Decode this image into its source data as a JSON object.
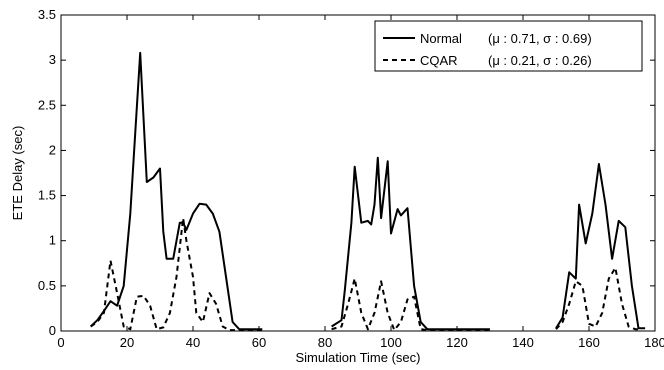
{
  "chart_data": {
    "type": "line",
    "title": "",
    "xlabel": "Simulation Time (sec)",
    "ylabel": "ETE Delay (sec)",
    "xlim": [
      0,
      180
    ],
    "ylim": [
      0,
      3.5
    ],
    "xticks": [
      0,
      20,
      40,
      60,
      80,
      100,
      120,
      140,
      160,
      180
    ],
    "yticks": [
      0,
      0.5,
      1,
      1.5,
      2,
      2.5,
      3,
      3.5
    ],
    "xtick_labels": [
      "0",
      "20",
      "40",
      "60",
      "80",
      "100",
      "120",
      "140",
      "160",
      "180"
    ],
    "ytick_labels": [
      "0",
      "0.5",
      "1",
      "1.5",
      "2",
      "2.5",
      "3",
      "3.5"
    ],
    "grid": false,
    "legend_position": "top-right",
    "series": [
      {
        "name": "Normal",
        "stats": "(μ : 0.71, σ : 0.69)",
        "style": "solid",
        "color": "#000000",
        "segments": [
          [
            [
              9,
              0.05
            ],
            [
              11,
              0.12
            ],
            [
              13,
              0.22
            ],
            [
              15,
              0.33
            ],
            [
              17,
              0.28
            ],
            [
              19,
              0.5
            ],
            [
              21,
              1.3
            ],
            [
              22,
              1.9
            ],
            [
              24,
              3.08
            ],
            [
              26,
              1.65
            ],
            [
              28,
              1.7
            ],
            [
              30,
              1.8
            ],
            [
              31,
              1.1
            ],
            [
              32,
              0.8
            ],
            [
              34,
              0.8
            ],
            [
              36,
              1.2
            ],
            [
              37,
              1.2
            ],
            [
              38,
              1.12
            ],
            [
              40,
              1.3
            ],
            [
              42,
              1.41
            ],
            [
              44,
              1.4
            ],
            [
              46,
              1.3
            ],
            [
              48,
              1.1
            ],
            [
              50,
              0.6
            ],
            [
              52,
              0.1
            ],
            [
              54,
              0.02
            ],
            [
              58,
              0.02
            ],
            [
              61,
              0.02
            ]
          ],
          [
            [
              82,
              0.05
            ],
            [
              85,
              0.12
            ],
            [
              86,
              0.45
            ],
            [
              88,
              1.2
            ],
            [
              89,
              1.82
            ],
            [
              91,
              1.2
            ],
            [
              93,
              1.22
            ],
            [
              94,
              1.18
            ],
            [
              95,
              1.4
            ],
            [
              96,
              1.92
            ],
            [
              97,
              1.25
            ],
            [
              99,
              1.88
            ],
            [
              100,
              1.08
            ],
            [
              102,
              1.35
            ],
            [
              103,
              1.28
            ],
            [
              105,
              1.36
            ],
            [
              107,
              0.5
            ],
            [
              109,
              0.1
            ],
            [
              111,
              0.02
            ],
            [
              114,
              0.02
            ],
            [
              130,
              0.02
            ]
          ],
          [
            [
              150,
              0.03
            ],
            [
              152,
              0.15
            ],
            [
              154,
              0.65
            ],
            [
              156,
              0.58
            ],
            [
              157,
              1.4
            ],
            [
              159,
              0.97
            ],
            [
              161,
              1.3
            ],
            [
              163,
              1.85
            ],
            [
              165,
              1.4
            ],
            [
              167,
              0.8
            ],
            [
              169,
              1.22
            ],
            [
              171,
              1.15
            ],
            [
              173,
              0.5
            ],
            [
              175,
              0.03
            ],
            [
              177,
              0.03
            ]
          ]
        ]
      },
      {
        "name": "CQAR",
        "stats": "(μ : 0.21, σ : 0.26)",
        "style": "dashed",
        "color": "#000000",
        "segments": [
          [
            [
              9,
              0.05
            ],
            [
              11,
              0.1
            ],
            [
              13,
              0.2
            ],
            [
              15,
              0.78
            ],
            [
              17,
              0.42
            ],
            [
              19,
              0.05
            ],
            [
              21,
              0.02
            ],
            [
              23,
              0.38
            ],
            [
              25,
              0.39
            ],
            [
              27,
              0.28
            ],
            [
              29,
              0.02
            ],
            [
              31,
              0.04
            ],
            [
              33,
              0.2
            ],
            [
              35,
              0.6
            ],
            [
              37,
              1.25
            ],
            [
              38,
              1.0
            ],
            [
              40,
              0.6
            ],
            [
              41,
              0.2
            ],
            [
              43,
              0.1
            ],
            [
              45,
              0.42
            ],
            [
              47,
              0.3
            ],
            [
              49,
              0.05
            ],
            [
              51,
              0.01
            ],
            [
              57,
              0.01
            ],
            [
              61,
              0.01
            ]
          ],
          [
            [
              82,
              0.02
            ],
            [
              85,
              0.05
            ],
            [
              87,
              0.3
            ],
            [
              89,
              0.58
            ],
            [
              91,
              0.2
            ],
            [
              93,
              0.02
            ],
            [
              95,
              0.2
            ],
            [
              97,
              0.55
            ],
            [
              99,
              0.2
            ],
            [
              101,
              0.01
            ],
            [
              103,
              0.1
            ],
            [
              105,
              0.35
            ],
            [
              107,
              0.38
            ],
            [
              109,
              0.02
            ],
            [
              111,
              0.01
            ],
            [
              130,
              0.01
            ]
          ],
          [
            [
              150,
              0.02
            ],
            [
              152,
              0.1
            ],
            [
              154,
              0.3
            ],
            [
              156,
              0.55
            ],
            [
              158,
              0.5
            ],
            [
              160,
              0.08
            ],
            [
              162,
              0.05
            ],
            [
              164,
              0.2
            ],
            [
              166,
              0.58
            ],
            [
              168,
              0.7
            ],
            [
              170,
              0.3
            ],
            [
              172,
              0.05
            ],
            [
              174,
              0.02
            ],
            [
              176,
              0.02
            ]
          ]
        ]
      }
    ]
  }
}
